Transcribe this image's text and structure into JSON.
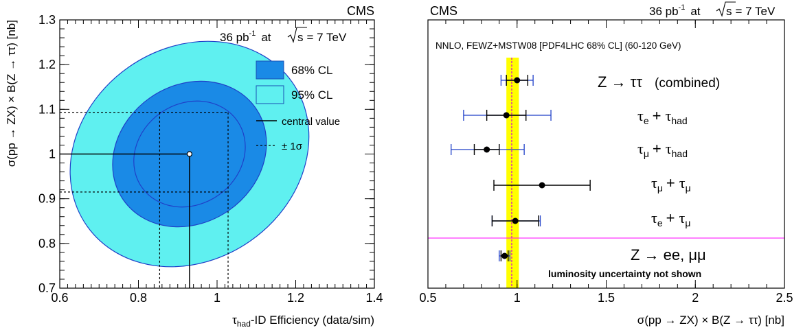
{
  "chart_data": [
    {
      "type": "contour",
      "experiment": "CMS",
      "luminosity": "36 pb",
      "luminosity_exp": "-1",
      "energy_prefix": "at",
      "energy_sqrt": "s",
      "energy_value": "= 7 TeV",
      "xlabel_sym": "τ",
      "xlabel_sub": "had",
      "xlabel_rest": "-ID Efficiency (data/sim)",
      "ylabel": "σ(pp → ZX) × B(Z → ττ)  [nb]",
      "xlim": [
        0.6,
        1.4
      ],
      "ylim": [
        0.7,
        1.3
      ],
      "xticks": [
        "0.6",
        "0.8",
        "1",
        "1.2",
        "1.4"
      ],
      "yticks": [
        "0.7",
        "0.8",
        "0.9",
        "1",
        "1.1",
        "1.2",
        "1.3"
      ],
      "legend": [
        {
          "label": "68% CL",
          "color": "#1a8ae6"
        },
        {
          "label": "95% CL",
          "color": "#5ff0f0"
        },
        {
          "label": "central value",
          "style": "solid"
        },
        {
          "label": "± 1σ",
          "style": "dashed"
        }
      ],
      "central_value": {
        "x": 0.93,
        "y": 1.0
      },
      "one_sigma": {
        "x": [
          0.854,
          1.028
        ],
        "y": [
          0.915,
          1.093
        ]
      },
      "contours": [
        {
          "level": "95% CL",
          "center": [
            0.93,
            1.0
          ],
          "semi_axes": [
            0.27,
            0.028
          ],
          "angle_deg": -55,
          "fill": "#5ff0f0"
        },
        {
          "level": "68% CL",
          "center": [
            0.93,
            1.0
          ],
          "semi_axes": [
            0.175,
            0.018
          ],
          "angle_deg": -55,
          "fill": "#1a8ae6"
        },
        {
          "level": "1σ",
          "center": [
            0.93,
            1.0
          ],
          "semi_axes": [
            0.128,
            0.013
          ],
          "angle_deg": -55,
          "fill": "none"
        }
      ]
    },
    {
      "type": "errorbar",
      "experiment": "CMS",
      "luminosity": "36 pb",
      "luminosity_exp": "-1",
      "energy_prefix": "at",
      "energy_sqrt": "s",
      "energy_value": "= 7 TeV",
      "theory_note": "NNLO, FEWZ+MSTW08 [PDF4LHC 68% CL] (60-120 GeV)",
      "theory": {
        "value": 0.97,
        "band": [
          0.94,
          1.01
        ],
        "band_color": "#ffff00",
        "line_color": "#d400d4"
      },
      "xlabel": "σ(pp → ZX) × B(Z → ττ)  [nb]",
      "xlim": [
        0.5,
        2.5
      ],
      "xticks": [
        "0.5",
        "1",
        "1.5",
        "2",
        "2.5"
      ],
      "separator_color": "#ff00ff",
      "note": "luminosity uncertainty not shown",
      "note_color": "#1a1acc",
      "points": [
        {
          "label_main": "Z → ττ",
          "label_extra": "(combined)",
          "value": 1.0,
          "stat": [
            0.94,
            1.06
          ],
          "total": [
            0.91,
            1.09
          ]
        },
        {
          "label_a": "τ",
          "sub_a": "e",
          "label_b": "τ",
          "sub_b": "had",
          "value": 0.94,
          "stat": [
            0.83,
            1.05
          ],
          "total": [
            0.7,
            1.19
          ]
        },
        {
          "label_a": "τ",
          "sub_a": "μ",
          "label_b": "τ",
          "sub_b": "had",
          "value": 0.83,
          "stat": [
            0.76,
            0.9
          ],
          "total": [
            0.63,
            1.04
          ]
        },
        {
          "label_a": "τ",
          "sub_a": "μ",
          "label_b": "τ",
          "sub_b": "μ",
          "value": 1.14,
          "stat": [
            0.87,
            1.41
          ],
          "total": [
            0.87,
            1.41
          ]
        },
        {
          "label_a": "τ",
          "sub_a": "e",
          "label_b": "τ",
          "sub_b": "μ",
          "value": 0.99,
          "stat": [
            0.86,
            1.12
          ],
          "total": [
            0.86,
            1.13
          ]
        },
        {
          "label_main": "Z → ee, μμ",
          "value": 0.93,
          "stat": [
            0.91,
            0.95
          ],
          "total": [
            0.9,
            0.96
          ]
        }
      ]
    }
  ]
}
